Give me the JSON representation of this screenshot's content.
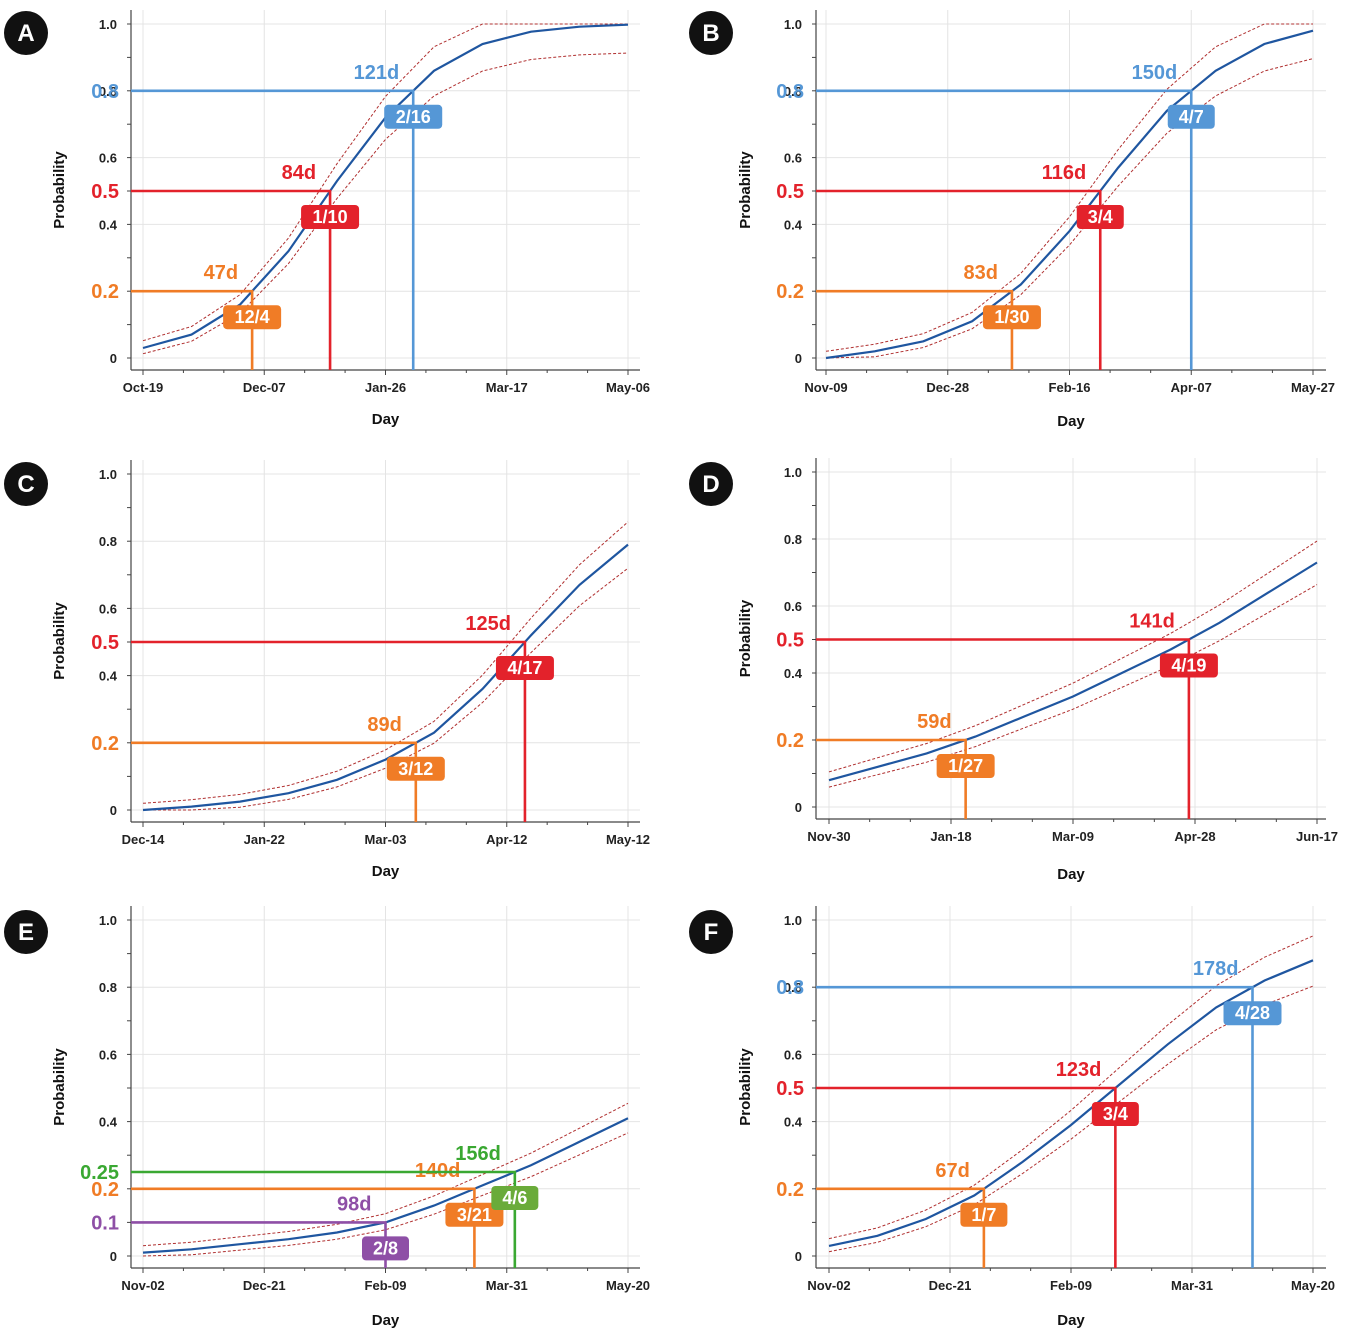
{
  "axis": {
    "xlabel": "Day",
    "ylabel": "Probability",
    "y_ticks": [
      "0",
      "0.4",
      "0.6",
      "0.8",
      "1.0"
    ]
  },
  "colors": {
    "curve": "#1f56a0",
    "ci": "#b03030",
    "p0_1": "#8e4fa6",
    "p0_2": "#f07c26",
    "p0_25": "#3aa832",
    "p0_5": "#e3222b",
    "p0_8": "#5597d6",
    "box_green": "#6aab3a"
  },
  "chart_data": [
    {
      "panel": "A",
      "type": "line",
      "x_ticks": [
        "Oct-19",
        "Dec-07",
        "Jan-26",
        "Mar-17",
        "May-06"
      ],
      "curve": {
        "x": [
          0,
          20,
          40,
          60,
          80,
          100,
          120,
          140,
          160,
          180,
          200
        ],
        "y": [
          0.03,
          0.07,
          0.16,
          0.32,
          0.53,
          0.72,
          0.86,
          0.94,
          0.977,
          0.992,
          0.998
        ]
      },
      "thresholds": [
        {
          "p": 0.2,
          "p_label": "0.2",
          "days": "47d",
          "date": "12/4",
          "color_key": "p0_2"
        },
        {
          "p": 0.5,
          "p_label": "0.5",
          "days": "84d",
          "date": "1/10",
          "color_key": "p0_5"
        },
        {
          "p": 0.8,
          "p_label": "0.8",
          "days": "121d",
          "date": "2/16",
          "color_key": "p0_8"
        }
      ]
    },
    {
      "panel": "B",
      "type": "line",
      "x_ticks": [
        "Nov-09",
        "Dec-28",
        "Feb-16",
        "Apr-07",
        "May-27"
      ],
      "curve": {
        "x": [
          0,
          20,
          40,
          60,
          80,
          100,
          120,
          140,
          160,
          180,
          200
        ],
        "y": [
          0.0,
          0.02,
          0.05,
          0.11,
          0.22,
          0.38,
          0.57,
          0.74,
          0.86,
          0.94,
          0.98
        ]
      },
      "thresholds": [
        {
          "p": 0.2,
          "p_label": "0.2",
          "days": "83d",
          "date": "1/30",
          "color_key": "p0_2"
        },
        {
          "p": 0.5,
          "p_label": "0.5",
          "days": "116d",
          "date": "3/4",
          "color_key": "p0_5"
        },
        {
          "p": 0.8,
          "p_label": "0.8",
          "days": "150d",
          "date": "4/7",
          "color_key": "p0_8"
        }
      ]
    },
    {
      "panel": "C",
      "type": "line",
      "x_ticks": [
        "Dec-14",
        "Jan-22",
        "Mar-03",
        "Apr-12",
        "May-12"
      ],
      "curve": {
        "x": [
          0,
          15,
          30,
          45,
          60,
          75,
          90,
          105,
          120,
          135,
          150
        ],
        "y": [
          0.0,
          0.01,
          0.025,
          0.05,
          0.09,
          0.15,
          0.23,
          0.36,
          0.52,
          0.67,
          0.79
        ]
      },
      "thresholds": [
        {
          "p": 0.2,
          "p_label": "0.2",
          "days": "89d",
          "date": "3/12",
          "color_key": "p0_2"
        },
        {
          "p": 0.5,
          "p_label": "0.5",
          "days": "125d",
          "date": "4/17",
          "color_key": "p0_5"
        }
      ]
    },
    {
      "panel": "D",
      "type": "line",
      "x_ticks": [
        "Nov-30",
        "Jan-18",
        "Mar-09",
        "Apr-28",
        "Jun-17"
      ],
      "curve": {
        "x": [
          0,
          20,
          40,
          60,
          80,
          100,
          120,
          140,
          160,
          180,
          200
        ],
        "y": [
          0.08,
          0.12,
          0.16,
          0.21,
          0.27,
          0.33,
          0.4,
          0.47,
          0.55,
          0.64,
          0.73
        ]
      },
      "thresholds": [
        {
          "p": 0.2,
          "p_label": "0.2",
          "days": "59d",
          "date": "1/27",
          "color_key": "p0_2"
        },
        {
          "p": 0.5,
          "p_label": "0.5",
          "days": "141d",
          "date": "4/19",
          "color_key": "p0_5"
        }
      ]
    },
    {
      "panel": "E",
      "type": "line",
      "x_ticks": [
        "Nov-02",
        "Dec-21",
        "Feb-09",
        "Mar-31",
        "May-20"
      ],
      "curve": {
        "x": [
          0,
          20,
          40,
          60,
          80,
          100,
          120,
          140,
          160,
          180,
          200
        ],
        "y": [
          0.01,
          0.02,
          0.035,
          0.05,
          0.07,
          0.1,
          0.15,
          0.21,
          0.27,
          0.34,
          0.41
        ]
      },
      "thresholds": [
        {
          "p": 0.1,
          "p_label": "0.1",
          "days": "98d",
          "date": "2/8",
          "color_key": "p0_1"
        },
        {
          "p": 0.2,
          "p_label": "0.2",
          "days": "140d",
          "date": "3/21",
          "color_key": "p0_2"
        },
        {
          "p": 0.25,
          "p_label": "0.25",
          "days": "156d",
          "date": "4/6",
          "color_key": "p0_25",
          "box_key": "box_green"
        }
      ]
    },
    {
      "panel": "F",
      "type": "line",
      "x_ticks": [
        "Nov-02",
        "Dec-21",
        "Feb-09",
        "Mar-31",
        "May-20"
      ],
      "curve": {
        "x": [
          0,
          20,
          40,
          60,
          80,
          100,
          120,
          140,
          160,
          180,
          200
        ],
        "y": [
          0.03,
          0.06,
          0.11,
          0.18,
          0.28,
          0.39,
          0.51,
          0.63,
          0.74,
          0.82,
          0.88
        ]
      },
      "thresholds": [
        {
          "p": 0.2,
          "p_label": "0.2",
          "days": "67d",
          "date": "1/7",
          "color_key": "p0_2"
        },
        {
          "p": 0.5,
          "p_label": "0.5",
          "days": "123d",
          "date": "3/4",
          "color_key": "p0_5"
        },
        {
          "p": 0.8,
          "p_label": "0.8",
          "days": "178d",
          "date": "4/28",
          "color_key": "p0_8"
        }
      ]
    }
  ]
}
